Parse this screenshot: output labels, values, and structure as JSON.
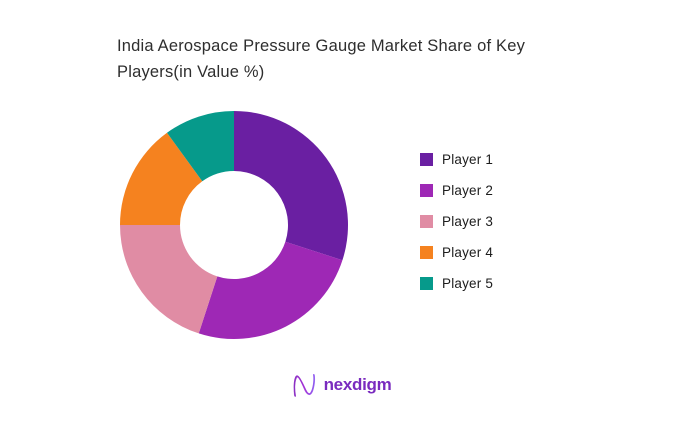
{
  "header": {
    "title_lines": [
      "India Aerospace Pressure Gauge Market Share of Key",
      "Players(in Value %)"
    ]
  },
  "chart_data": {
    "type": "pie",
    "subtype": "donut",
    "title": "India Aerospace Pressure Gauge Market Share of Key Players(in Value %)",
    "unit": "% of value",
    "series": [
      {
        "name": "Player 1",
        "value": 30,
        "color": "#6a1fa2"
      },
      {
        "name": "Player 2",
        "value": 25,
        "color": "#9e28b5"
      },
      {
        "name": "Player 3",
        "value": 20,
        "color": "#e08ca4"
      },
      {
        "name": "Player 4",
        "value": 15,
        "color": "#f5821f"
      },
      {
        "name": "Player 5",
        "value": 10,
        "color": "#069a8b"
      }
    ],
    "start_angle_deg_from_top": 0,
    "direction": "clockwise",
    "inner_radius_ratio": 0.47,
    "legend_position": "right",
    "data_labels": false
  },
  "footer": {
    "brand": "nexdigm"
  }
}
